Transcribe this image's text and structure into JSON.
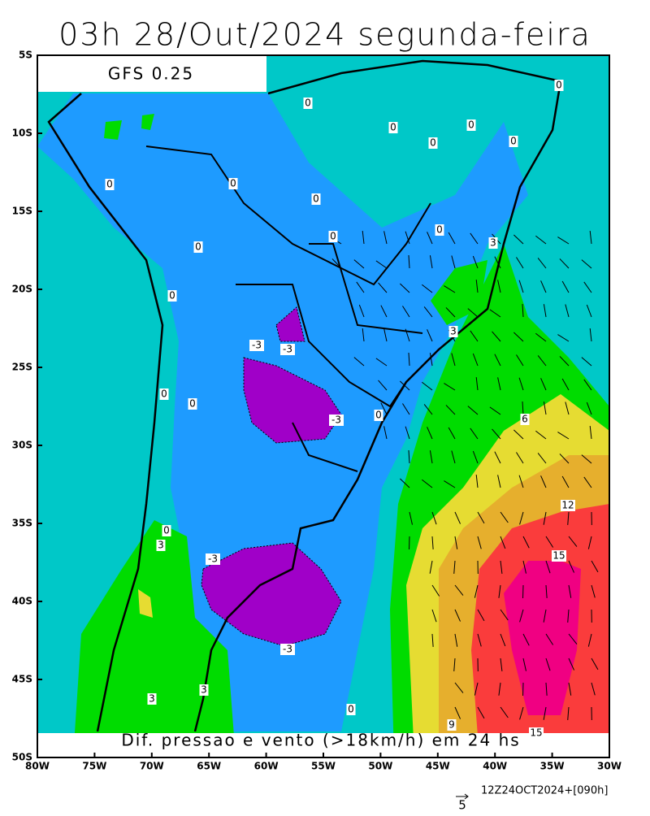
{
  "title": "03h 28/Out/2024 segunda-feira",
  "model": "GFS 0.25",
  "caption": "Dif. pressao e vento (>18km/h) em 24 hs",
  "footer": "12Z24OCT2024+[090h]",
  "vector_scale": 5,
  "lat_ticks": [
    {
      "value": -5,
      "label": "5S"
    },
    {
      "value": -10,
      "label": "10S"
    },
    {
      "value": -15,
      "label": "15S"
    },
    {
      "value": -20,
      "label": "20S"
    },
    {
      "value": -25,
      "label": "25S"
    },
    {
      "value": -30,
      "label": "30S"
    },
    {
      "value": -35,
      "label": "35S"
    },
    {
      "value": -40,
      "label": "40S"
    },
    {
      "value": -45,
      "label": "45S"
    },
    {
      "value": -50,
      "label": "50S"
    }
  ],
  "lon_ticks": [
    {
      "value": -80,
      "label": "80W"
    },
    {
      "value": -75,
      "label": "75W"
    },
    {
      "value": -70,
      "label": "70W"
    },
    {
      "value": -65,
      "label": "65W"
    },
    {
      "value": -60,
      "label": "60W"
    },
    {
      "value": -55,
      "label": "55W"
    },
    {
      "value": -50,
      "label": "50W"
    },
    {
      "value": -45,
      "label": "45W"
    },
    {
      "value": -40,
      "label": "40W"
    },
    {
      "value": -35,
      "label": "35W"
    },
    {
      "value": -30,
      "label": "30W"
    }
  ],
  "contour_labels": [
    0,
    0,
    0,
    0,
    0,
    0,
    0,
    0,
    0,
    0,
    0,
    0,
    0,
    3,
    3,
    -3,
    -3,
    0,
    0,
    -3,
    0,
    6,
    0,
    3,
    12,
    -3,
    15,
    -3,
    3,
    3,
    0,
    9,
    15
  ]
}
